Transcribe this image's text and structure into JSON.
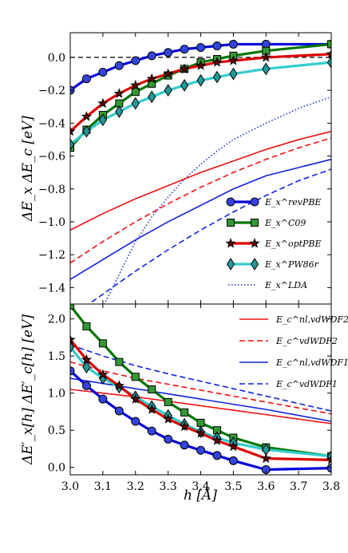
{
  "chart_data": [
    {
      "type": "line",
      "panel": "top",
      "ylabel": "ΔE_x  ΔE_c [eV]",
      "xlim": [
        3.0,
        3.8
      ],
      "ylim": [
        -1.5,
        0.15
      ],
      "yticks": [
        -1.4,
        -1.2,
        -1.0,
        -0.8,
        -0.6,
        -0.4,
        -0.2,
        0.0
      ],
      "ytick_labels": [
        "−1.4",
        "−1.2",
        "−1.0",
        "−0.8",
        "−0.6",
        "−0.4",
        "−0.2",
        "0.0"
      ],
      "legend_position": "lower-right",
      "reference_line": {
        "y": 0.0,
        "style": "dashed",
        "color": "#000000"
      },
      "series": [
        {
          "name": "E_x^revPBE",
          "legend": true,
          "color": "#0000e0",
          "marker": "circle",
          "marker_face": "#3344dd",
          "style": "solid",
          "x": [
            3.0,
            3.05,
            3.1,
            3.15,
            3.2,
            3.25,
            3.3,
            3.35,
            3.4,
            3.45,
            3.5,
            3.6,
            3.8
          ],
          "y": [
            -0.2,
            -0.13,
            -0.09,
            -0.05,
            -0.02,
            0.01,
            0.03,
            0.05,
            0.06,
            0.07,
            0.08,
            0.08,
            0.08
          ]
        },
        {
          "name": "E_x^C09",
          "legend": true,
          "color": "#007700",
          "marker": "square",
          "marker_face": "#339933",
          "style": "solid",
          "x": [
            3.0,
            3.05,
            3.1,
            3.15,
            3.2,
            3.25,
            3.3,
            3.35,
            3.4,
            3.45,
            3.5,
            3.6,
            3.8
          ],
          "y": [
            -0.55,
            -0.44,
            -0.35,
            -0.28,
            -0.21,
            -0.16,
            -0.11,
            -0.07,
            -0.03,
            -0.01,
            0.01,
            0.04,
            0.08
          ]
        },
        {
          "name": "E_x^optPBE",
          "legend": true,
          "color": "#dd0000",
          "marker": "star",
          "marker_face": "#660000",
          "style": "solid",
          "x": [
            3.0,
            3.05,
            3.1,
            3.15,
            3.2,
            3.25,
            3.3,
            3.35,
            3.4,
            3.45,
            3.5,
            3.6,
            3.8
          ],
          "y": [
            -0.45,
            -0.36,
            -0.28,
            -0.22,
            -0.17,
            -0.13,
            -0.1,
            -0.07,
            -0.05,
            -0.03,
            -0.02,
            0.0,
            0.02
          ]
        },
        {
          "name": "E_x^PW86r",
          "legend": true,
          "color": "#33cccc",
          "marker": "diamond",
          "marker_face": "#229999",
          "style": "solid",
          "x": [
            3.0,
            3.05,
            3.1,
            3.15,
            3.2,
            3.25,
            3.3,
            3.35,
            3.4,
            3.45,
            3.5,
            3.6,
            3.8
          ],
          "y": [
            -0.53,
            -0.45,
            -0.38,
            -0.33,
            -0.28,
            -0.24,
            -0.2,
            -0.17,
            -0.14,
            -0.12,
            -0.1,
            -0.07,
            -0.03
          ]
        },
        {
          "name": "E_x^LDA",
          "legend": true,
          "color": "#2233cc",
          "marker": "none",
          "style": "dotted",
          "x": [
            3.1,
            3.15,
            3.2,
            3.25,
            3.3,
            3.35,
            3.4,
            3.45,
            3.5,
            3.6,
            3.7,
            3.8
          ],
          "y": [
            -1.52,
            -1.32,
            -1.12,
            -0.97,
            -0.85,
            -0.74,
            -0.65,
            -0.57,
            -0.5,
            -0.4,
            -0.31,
            -0.24
          ]
        },
        {
          "legend": false,
          "color": "#ee1111",
          "marker": "none",
          "style": "solid",
          "x": [
            3.0,
            3.1,
            3.2,
            3.3,
            3.4,
            3.5,
            3.6,
            3.7,
            3.8
          ],
          "y": [
            -1.05,
            -0.95,
            -0.86,
            -0.78,
            -0.7,
            -0.63,
            -0.56,
            -0.5,
            -0.45
          ]
        },
        {
          "legend": false,
          "color": "#ee1111",
          "marker": "none",
          "style": "dashed",
          "x": [
            3.0,
            3.1,
            3.2,
            3.3,
            3.4,
            3.5,
            3.6,
            3.7,
            3.8
          ],
          "y": [
            -1.25,
            -1.12,
            -1.0,
            -0.89,
            -0.79,
            -0.7,
            -0.62,
            -0.55,
            -0.49
          ]
        },
        {
          "legend": false,
          "color": "#1122dd",
          "marker": "none",
          "style": "solid",
          "x": [
            3.0,
            3.1,
            3.2,
            3.3,
            3.4,
            3.5,
            3.6,
            3.7,
            3.8
          ],
          "y": [
            -1.35,
            -1.23,
            -1.11,
            -1.0,
            -0.9,
            -0.8,
            -0.72,
            -0.67,
            -0.62
          ]
        },
        {
          "legend": false,
          "color": "#1122dd",
          "marker": "none",
          "style": "dashed",
          "x": [
            3.0,
            3.1,
            3.2,
            3.3,
            3.4,
            3.5,
            3.6,
            3.7,
            3.8
          ],
          "y": [
            -1.58,
            -1.44,
            -1.3,
            -1.17,
            -1.05,
            -0.94,
            -0.84,
            -0.75,
            -0.68
          ]
        }
      ]
    },
    {
      "type": "line",
      "panel": "bottom",
      "xlabel": "h [Å]",
      "ylabel": "ΔE′_x[h]  ΔE′_c[h] [eV]",
      "xlim": [
        3.0,
        3.8
      ],
      "ylim": [
        -0.1,
        2.2
      ],
      "xticks": [
        3.0,
        3.1,
        3.2,
        3.3,
        3.4,
        3.5,
        3.6,
        3.7,
        3.8
      ],
      "xtick_labels": [
        "3.0",
        "3.1",
        "3.2",
        "3.3",
        "3.4",
        "3.5",
        "3.6",
        "3.7",
        "3.8"
      ],
      "yticks": [
        0.0,
        0.5,
        1.0,
        1.5,
        2.0
      ],
      "ytick_labels": [
        "0.0",
        "0.5",
        "1.0",
        "1.5",
        "2.0"
      ],
      "legend_position": "top-right",
      "series": [
        {
          "name": "E_c^nl,vdWDF2",
          "legend": true,
          "color": "#ee1111",
          "marker": "none",
          "style": "solid",
          "x": [
            3.0,
            3.1,
            3.2,
            3.3,
            3.4,
            3.5,
            3.6,
            3.7,
            3.8
          ],
          "y": [
            1.05,
            1.0,
            0.95,
            0.89,
            0.83,
            0.77,
            0.71,
            0.65,
            0.59
          ]
        },
        {
          "name": "E_c^vdWDF2",
          "legend": true,
          "color": "#ee1111",
          "marker": "none",
          "style": "dashed",
          "x": [
            3.0,
            3.1,
            3.2,
            3.3,
            3.4,
            3.5,
            3.6,
            3.7,
            3.8
          ],
          "y": [
            1.42,
            1.3,
            1.2,
            1.12,
            1.04,
            0.96,
            0.88,
            0.8,
            0.72
          ]
        },
        {
          "name": "E_c^nl,vdWDF1",
          "legend": true,
          "color": "#1122dd",
          "marker": "none",
          "style": "solid",
          "x": [
            3.0,
            3.1,
            3.2,
            3.3,
            3.4,
            3.5,
            3.6,
            3.7,
            3.8
          ],
          "y": [
            1.2,
            1.13,
            1.06,
            0.99,
            0.92,
            0.85,
            0.78,
            0.7,
            0.62
          ]
        },
        {
          "name": "E_c^vdWDF1",
          "legend": true,
          "color": "#1122dd",
          "marker": "none",
          "style": "dashed",
          "x": [
            3.0,
            3.1,
            3.2,
            3.3,
            3.4,
            3.5,
            3.6,
            3.7,
            3.8
          ],
          "y": [
            1.65,
            1.5,
            1.37,
            1.26,
            1.16,
            1.06,
            0.96,
            0.86,
            0.76
          ]
        },
        {
          "legend": false,
          "color": "#007700",
          "marker": "square",
          "marker_face": "#339933",
          "style": "solid",
          "x": [
            3.0,
            3.05,
            3.1,
            3.15,
            3.2,
            3.25,
            3.3,
            3.35,
            3.4,
            3.45,
            3.5,
            3.6,
            3.8
          ],
          "y": [
            2.18,
            1.9,
            1.67,
            1.42,
            1.22,
            1.05,
            0.88,
            0.74,
            0.6,
            0.5,
            0.4,
            0.27,
            0.15
          ]
        },
        {
          "legend": false,
          "color": "#33cccc",
          "marker": "diamond",
          "marker_face": "#229999",
          "style": "solid",
          "x": [
            3.0,
            3.05,
            3.1,
            3.15,
            3.2,
            3.25,
            3.3,
            3.35,
            3.4,
            3.45,
            3.5,
            3.6,
            3.8
          ],
          "y": [
            1.62,
            1.35,
            1.2,
            1.08,
            0.95,
            0.82,
            0.7,
            0.58,
            0.48,
            0.4,
            0.33,
            0.24,
            0.15
          ]
        },
        {
          "legend": false,
          "color": "#dd0000",
          "marker": "star",
          "marker_face": "#660000",
          "style": "solid",
          "x": [
            3.0,
            3.05,
            3.1,
            3.15,
            3.2,
            3.25,
            3.3,
            3.35,
            3.4,
            3.45,
            3.5,
            3.6,
            3.8
          ],
          "y": [
            1.72,
            1.45,
            1.25,
            1.1,
            0.92,
            0.78,
            0.65,
            0.55,
            0.46,
            0.36,
            0.28,
            0.12,
            0.1
          ]
        },
        {
          "legend": false,
          "color": "#0000e0",
          "marker": "circle",
          "marker_face": "#3344dd",
          "style": "solid",
          "x": [
            3.0,
            3.05,
            3.1,
            3.15,
            3.2,
            3.25,
            3.3,
            3.35,
            3.4,
            3.45,
            3.5,
            3.6,
            3.8
          ],
          "y": [
            1.3,
            1.1,
            0.92,
            0.76,
            0.62,
            0.49,
            0.38,
            0.3,
            0.23,
            0.16,
            0.09,
            -0.03,
            -0.01
          ]
        }
      ]
    }
  ]
}
